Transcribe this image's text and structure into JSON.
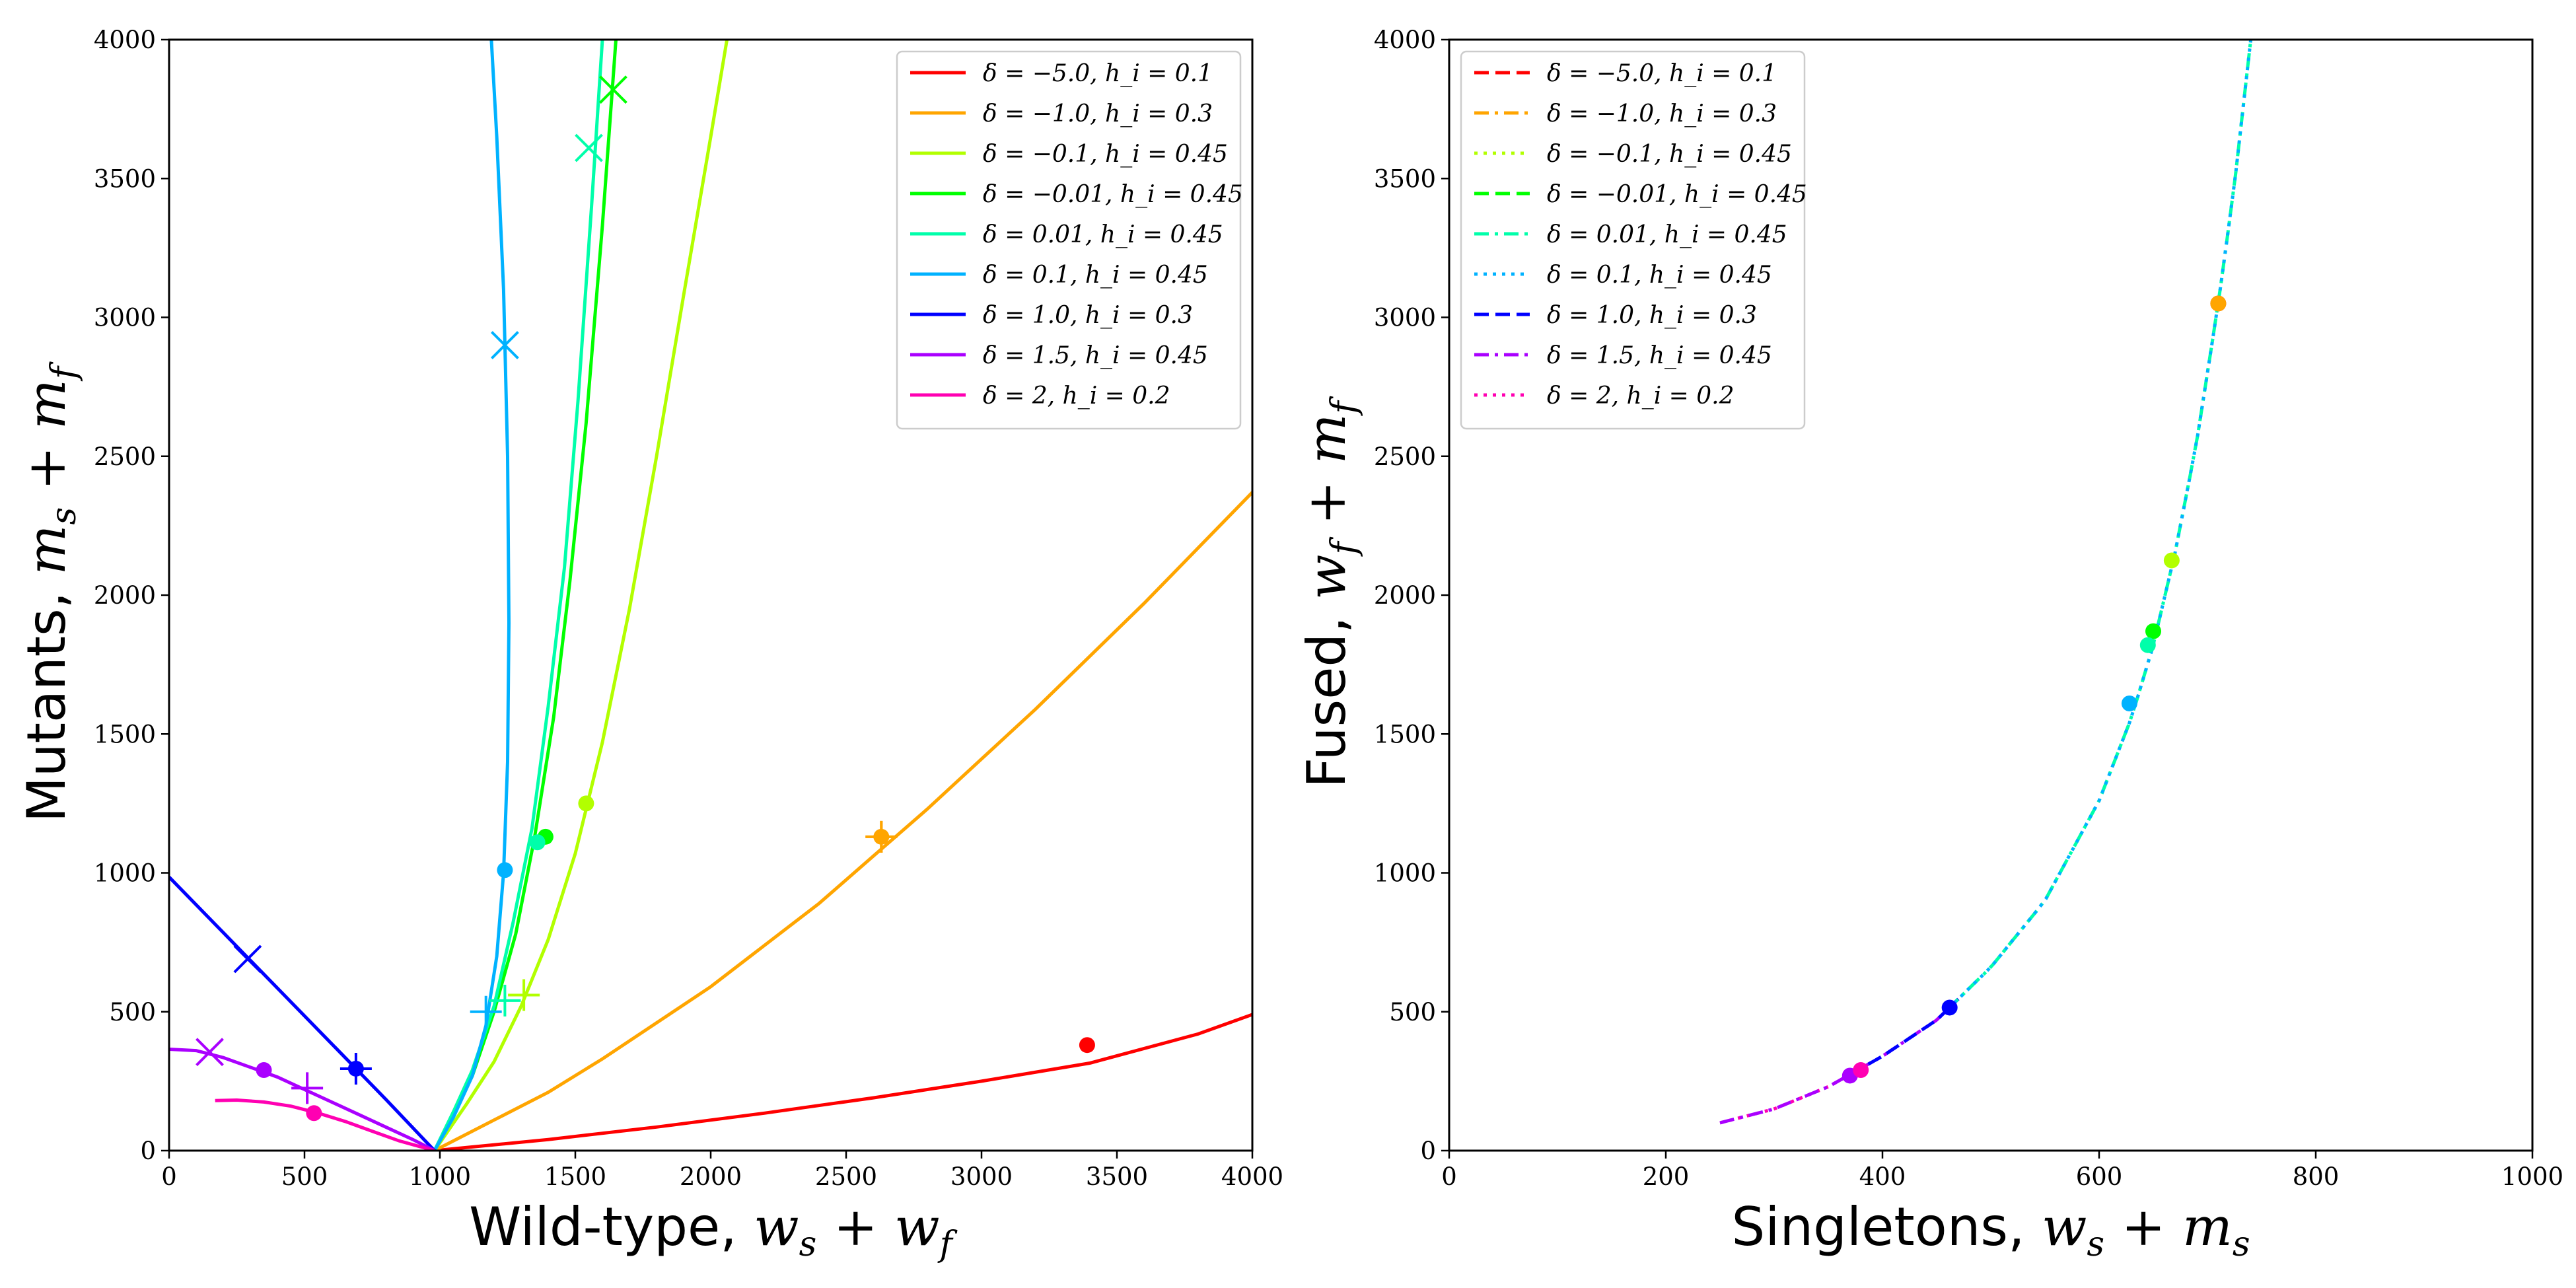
{
  "chart_data": [
    {
      "type": "line",
      "title": "",
      "xlabel": "Wild-type, ",
      "xlabel_math": "w_s + w_f",
      "ylabel": "Mutants, ",
      "ylabel_math": "m_s + m_f",
      "xlim": [
        0,
        4000
      ],
      "ylim": [
        0,
        4000
      ],
      "xticks": [
        "0",
        "500",
        "1000",
        "1500",
        "2000",
        "2500",
        "3000",
        "3500",
        "4000"
      ],
      "yticks": [
        "0",
        "500",
        "1000",
        "1500",
        "2000",
        "2500",
        "3000",
        "3500",
        "4000"
      ],
      "legend_position": "top-right",
      "series": [
        {
          "name": "δ = −5.0, h_i = 0.1",
          "color": "#ff0000",
          "dash": "solid",
          "x": [
            980,
            1400,
            1800,
            2200,
            2600,
            3000,
            3400,
            3800,
            4000
          ],
          "y": [
            0,
            40,
            85,
            135,
            190,
            250,
            315,
            420,
            490
          ],
          "dots": [
            [
              3390,
              380
            ]
          ],
          "plus": [],
          "cross": []
        },
        {
          "name": "δ = −1.0, h_i = 0.3",
          "color": "#ffa500",
          "dash": "solid",
          "x": [
            980,
            1200,
            1400,
            1600,
            1800,
            2000,
            2200,
            2400,
            2600,
            2800,
            3000,
            3200,
            3400,
            3600,
            3800,
            4000
          ],
          "y": [
            0,
            110,
            210,
            330,
            460,
            590,
            740,
            890,
            1060,
            1230,
            1410,
            1590,
            1780,
            1970,
            2170,
            2370
          ],
          "dots": [],
          "plus": [
            [
              2630,
              1130
            ]
          ],
          "cross": [],
          "dotplus": [
            [
              2630,
              1130
            ]
          ]
        },
        {
          "name": "δ = −0.1, h_i = 0.45",
          "color": "#b2ff00",
          "dash": "solid",
          "x": [
            980,
            1100,
            1200,
            1300,
            1400,
            1500,
            1600,
            1700,
            1800,
            1900,
            2000,
            2060
          ],
          "y": [
            0,
            170,
            320,
            520,
            760,
            1070,
            1470,
            1950,
            2500,
            3080,
            3650,
            4000
          ],
          "dots": [
            [
              1540,
              1250
            ]
          ],
          "plus": [
            [
              1310,
              560
            ]
          ],
          "cross": []
        },
        {
          "name": "δ = −0.01, h_i = 0.45",
          "color": "#00ff00",
          "dash": "solid",
          "x": [
            980,
            1050,
            1120,
            1200,
            1280,
            1350,
            1420,
            1480,
            1540,
            1600,
            1650
          ],
          "y": [
            0,
            130,
            270,
            500,
            780,
            1130,
            1560,
            2050,
            2620,
            3330,
            4000
          ],
          "dots": [
            [
              1390,
              1130
            ]
          ],
          "plus": [],
          "cross": [
            [
              1640,
              3820
            ]
          ]
        },
        {
          "name": "δ = 0.01, h_i = 0.45",
          "color": "#00ffaa",
          "dash": "solid",
          "x": [
            980,
            1050,
            1120,
            1200,
            1270,
            1340,
            1400,
            1460,
            1510,
            1560,
            1600
          ],
          "y": [
            0,
            140,
            290,
            520,
            820,
            1160,
            1600,
            2100,
            2700,
            3400,
            4000
          ],
          "dots": [
            [
              1360,
              1110
            ]
          ],
          "plus": [
            [
              1240,
              540
            ]
          ],
          "cross": [
            [
              1550,
              3610
            ]
          ]
        },
        {
          "name": "δ = 0.1, h_i = 0.45",
          "color": "#00b2ff",
          "dash": "solid",
          "x": [
            980,
            1050,
            1120,
            1170,
            1210,
            1235,
            1250,
            1255,
            1250,
            1235,
            1210,
            1190
          ],
          "y": [
            0,
            120,
            270,
            450,
            700,
            1000,
            1400,
            1900,
            2500,
            3100,
            3650,
            4000
          ],
          "dots": [
            [
              1240,
              1010
            ]
          ],
          "plus": [
            [
              1170,
              500
            ]
          ],
          "cross": [
            [
              1240,
              2900
            ]
          ]
        },
        {
          "name": "δ = 1.0, h_i = 0.3",
          "color": "#0000ff",
          "dash": "solid",
          "x": [
            0,
            200,
            400,
            600,
            800,
            980
          ],
          "y": [
            985,
            785,
            585,
            385,
            185,
            0
          ],
          "dots": [],
          "plus": [],
          "cross": [
            [
              290,
              690
            ]
          ],
          "dotplus": [
            [
              690,
              295
            ]
          ]
        },
        {
          "name": "δ = 1.5, h_i = 0.45",
          "color": "#aa00ff",
          "dash": "solid",
          "x": [
            0,
            100,
            200,
            300,
            400,
            500,
            600,
            700,
            800,
            900,
            980
          ],
          "y": [
            365,
            360,
            335,
            300,
            265,
            220,
            175,
            130,
            85,
            40,
            0
          ],
          "dots": [
            [
              350,
              290
            ]
          ],
          "plus": [
            [
              510,
              225
            ]
          ],
          "cross": [
            [
              150,
              355
            ]
          ]
        },
        {
          "name": "δ = 2, h_i = 0.2",
          "color": "#ff00b2",
          "dash": "solid",
          "x": [
            170,
            250,
            350,
            450,
            550,
            650,
            750,
            850,
            980
          ],
          "y": [
            180,
            182,
            175,
            160,
            135,
            105,
            70,
            35,
            0
          ],
          "dots": [
            [
              535,
              135
            ]
          ],
          "plus": [],
          "cross": []
        }
      ]
    },
    {
      "type": "line",
      "title": "",
      "xlabel": "Singletons, ",
      "xlabel_math": "w_s + m_s",
      "ylabel": "Fused, ",
      "ylabel_math": "w_f + m_f",
      "xlim": [
        0,
        1000
      ],
      "ylim": [
        0,
        4000
      ],
      "xticks": [
        "0",
        "200",
        "400",
        "600",
        "800",
        "1000"
      ],
      "yticks": [
        "0",
        "500",
        "1000",
        "1500",
        "2000",
        "2500",
        "3000",
        "3500",
        "4000"
      ],
      "legend_position": "top-left",
      "curve": {
        "x": [
          250,
          300,
          350,
          400,
          450,
          500,
          550,
          600,
          630,
          650,
          670,
          690,
          710,
          725,
          740
        ],
        "y": [
          100,
          150,
          230,
          340,
          470,
          660,
          900,
          1260,
          1560,
          1820,
          2150,
          2550,
          3050,
          3480,
          4000
        ]
      },
      "segment_colors": [
        {
          "color": "#ff00b2",
          "dash": "dot",
          "x_from": 250,
          "x_to": 380
        },
        {
          "color": "#aa00ff",
          "dash": "dashdot",
          "x_from": 250,
          "x_to": 460
        },
        {
          "color": "#0000ff",
          "dash": "dash",
          "x_from": 370,
          "x_to": 470
        },
        {
          "color": "#00ffaa",
          "dash": "dashdot",
          "x_from": 460,
          "x_to": 740
        },
        {
          "color": "#00b2ff",
          "dash": "dot",
          "x_from": 460,
          "x_to": 740
        }
      ],
      "series": [
        {
          "name": "δ = −5.0, h_i = 0.1",
          "color": "#ff0000",
          "dash": "dash",
          "dots": [
            [
              710,
              3050
            ]
          ]
        },
        {
          "name": "δ = −1.0, h_i = 0.3",
          "color": "#ffa500",
          "dash": "dashdot",
          "dots": [
            [
              710,
              3050
            ]
          ]
        },
        {
          "name": "δ = −0.1, h_i = 0.45",
          "color": "#b2ff00",
          "dash": "dot",
          "dots": [
            [
              667,
              2125
            ]
          ]
        },
        {
          "name": "δ = −0.01, h_i = 0.45",
          "color": "#00ff00",
          "dash": "dash",
          "dots": [
            [
              650,
              1870
            ]
          ]
        },
        {
          "name": "δ = 0.01, h_i = 0.45",
          "color": "#00ffaa",
          "dash": "dashdot",
          "dots": [
            [
              645,
              1820
            ]
          ]
        },
        {
          "name": "δ = 0.1, h_i = 0.45",
          "color": "#00b2ff",
          "dash": "dot",
          "dots": [
            [
              628,
              1610
            ]
          ]
        },
        {
          "name": "δ = 1.0, h_i = 0.3",
          "color": "#0000ff",
          "dash": "dash",
          "dots": [
            [
              462,
              515
            ]
          ]
        },
        {
          "name": "δ = 1.5, h_i = 0.45",
          "color": "#aa00ff",
          "dash": "dashdot",
          "dots": [
            [
              370,
              270
            ]
          ]
        },
        {
          "name": "δ = 2, h_i = 0.2",
          "color": "#ff00b2",
          "dash": "dot",
          "dots": [
            [
              380,
              290
            ]
          ]
        }
      ]
    }
  ]
}
